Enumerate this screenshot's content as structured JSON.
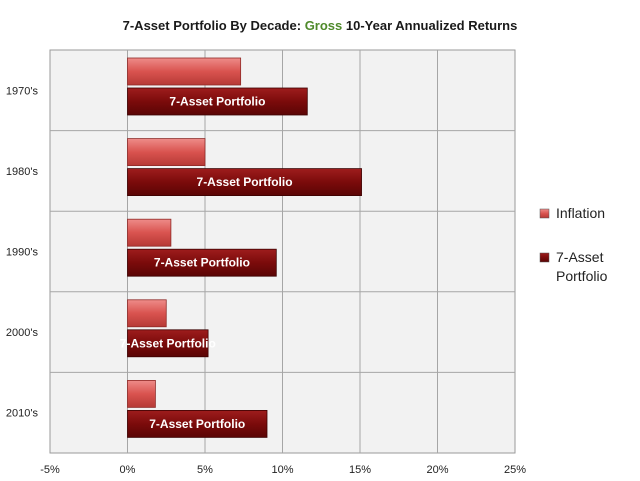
{
  "chart_data": {
    "type": "bar",
    "orientation": "horizontal",
    "title": {
      "prefix": "7-Asset Portfolio By Decade:",
      "highlight": "Gross",
      "suffix": "10-Year Annualized Returns"
    },
    "categories": [
      "1970's",
      "1980's",
      "1990's",
      "2000's",
      "2010's"
    ],
    "series": [
      {
        "name": "Inflation",
        "values": [
          7.3,
          5.0,
          2.8,
          2.5,
          1.8
        ],
        "color": "#d9534f"
      },
      {
        "name": "7-Asset Portfolio",
        "values": [
          11.6,
          15.1,
          9.6,
          5.2,
          9.0
        ],
        "color": "#7b0b0b",
        "data_label": "7-Asset Portfolio"
      }
    ],
    "xlim": [
      -5,
      25
    ],
    "x_ticks": [
      "-5%",
      "0%",
      "5%",
      "10%",
      "15%",
      "20%",
      "25%"
    ],
    "grid": true,
    "legend_position": "right",
    "legend": [
      {
        "lines": [
          "Inflation"
        ]
      },
      {
        "lines": [
          "7-Asset",
          "Portfolio"
        ]
      }
    ]
  }
}
